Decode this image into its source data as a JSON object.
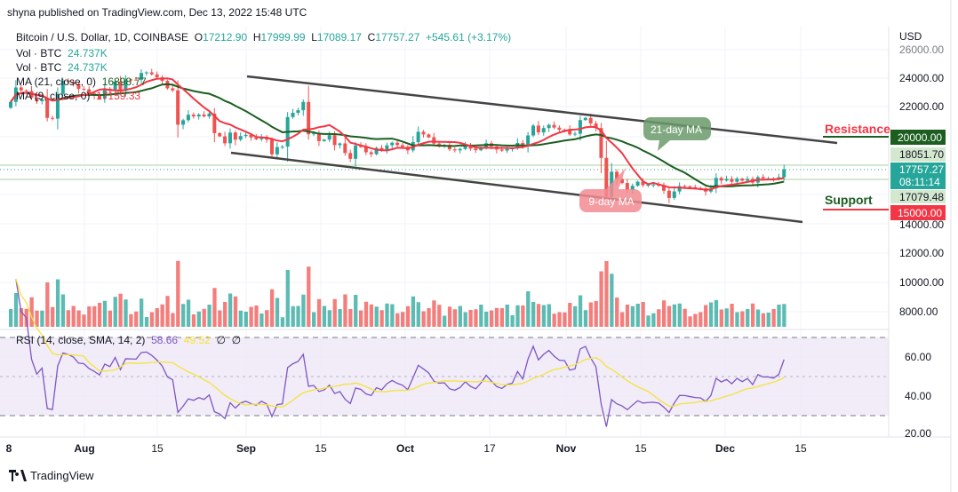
{
  "header": {
    "publish_line": "shyna published on TradingView.com, Dec 13, 2022 15:48 UTC"
  },
  "legend": {
    "symbol": "Bitcoin / U.S. Dollar, 1D, COINBASE",
    "open_label": "O",
    "open": "17212.90",
    "high_label": "H",
    "high": "17999.99",
    "low_label": "L",
    "low": "17089.17",
    "close_label": "C",
    "close": "17757.27",
    "change": "+545.61 (+3.17%)",
    "vol1_label": "Vol · BTC",
    "vol1": "24.737K",
    "vol2_label": "Vol · BTC",
    "vol2": "24.737K",
    "ma21_label": "MA (21, close, 0)",
    "ma21": "16898.77",
    "ma9_label": "MA (9, close, 0)",
    "ma9": "17159.33",
    "rsi_label": "RSI (14, close, SMA, 14, 2)",
    "rsi": "58.66",
    "rsi_sma": "49.52",
    "rsi_na1": "∅",
    "rsi_na2": "∅"
  },
  "annotations": {
    "resistance": "Resistance",
    "support": "Support",
    "ma21_callout": "21-day MA",
    "ma9_callout": "9-day MA"
  },
  "colors": {
    "up": "#26a69a",
    "down": "#ef5350",
    "ma21": "#1b5e20",
    "ma9": "#f23645",
    "rsi": "#7e57c2",
    "rsi_sma": "#f5e33b",
    "resistance": "#f23645",
    "support": "#1b5e20"
  },
  "price_axis": {
    "unit": "USD",
    "ticks": [
      "26000.00",
      "24000.00",
      "22000.00",
      "14000.00",
      "12000.00",
      "10000.00",
      "8000.00"
    ],
    "resistance_level": "20000.00",
    "support_level": "15000.00",
    "high_line": "18051.70",
    "last_price": "17757.27",
    "countdown": "08:11:14",
    "low_line": "17079.48"
  },
  "rsi_axis": {
    "ticks": [
      "60.00",
      "40.00",
      "20.00"
    ]
  },
  "time_axis": {
    "ticks": [
      "8",
      "Aug",
      "15",
      "Sep",
      "15",
      "Oct",
      "17",
      "Nov",
      "15",
      "Dec",
      "15"
    ]
  },
  "footer": {
    "brand": "TradingView"
  },
  "chart_data": {
    "type": "candlestick",
    "title": "Bitcoin / U.S. Dollar, 1D, COINBASE",
    "x_start": "2022-07-18",
    "x_end": "2022-12-13",
    "ylim": [
      13500,
      26500
    ],
    "grid": true,
    "closes": [
      22400,
      23400,
      23200,
      23150,
      22700,
      22450,
      22580,
      21300,
      21250,
      22950,
      23850,
      23780,
      23640,
      23300,
      23270,
      22990,
      22820,
      22620,
      23310,
      23180,
      23810,
      23160,
      23950,
      23940,
      23930,
      24400,
      24440,
      24300,
      24100,
      23850,
      23340,
      23200,
      20830,
      21140,
      21520,
      21400,
      21530,
      21400,
      21600,
      20250,
      20030,
      19550,
      20290,
      19800,
      20050,
      20130,
      19950,
      19830,
      19990,
      19800,
      18790,
      19290,
      19320,
      21360,
      21650,
      21830,
      22400,
      20170,
      20230,
      19700,
      19800,
      20110,
      19420,
      19540,
      18880,
      18480,
      19400,
      19300,
      18930,
      18800,
      19230,
      19080,
      19410,
      19590,
      19420,
      19310,
      19060,
      19630,
      20340,
      20160,
      19960,
      19530,
      19420,
      19440,
      19130,
      19060,
      19160,
      19380,
      19180,
      19070,
      19270,
      19550,
      19330,
      19120,
      19040,
      19160,
      19200,
      19570,
      19330,
      20090,
      20770,
      20300,
      20600,
      20820,
      20630,
      20490,
      20480,
      20160,
      20210,
      21150,
      21300,
      20920,
      20600,
      18540,
      15880,
      17590,
      17070,
      16810,
      16330,
      16620,
      16900,
      16660,
      16690,
      16700,
      16630,
      16280,
      15780,
      16230,
      16600,
      16590,
      16520,
      16460,
      16440,
      16220,
      16440,
      17160,
      16980,
      17090,
      16890,
      17110,
      16970,
      17090,
      16840,
      17220,
      17130,
      17130,
      17090,
      17210,
      17757.27
    ],
    "first_open": 22000,
    "indicators": [
      "MA 21",
      "MA 9",
      "Volume",
      "RSI 14 with SMA 14"
    ],
    "horizontal_levels": {
      "resistance": 20000,
      "support": 15000
    }
  }
}
